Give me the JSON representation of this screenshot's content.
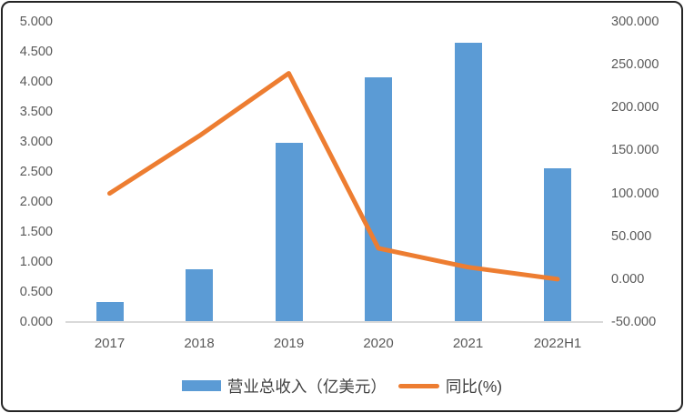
{
  "chart_data": {
    "type": "bar",
    "subtype": "combo-bar-line-dual-axis",
    "categories": [
      "2017",
      "2018",
      "2019",
      "2020",
      "2021",
      "2022H1"
    ],
    "series": [
      {
        "name": "营业总收入（亿美元）",
        "type": "bar",
        "axis": "left",
        "color": "#5B9BD5",
        "values": [
          0.33,
          0.88,
          2.99,
          4.08,
          4.65,
          2.56
        ]
      },
      {
        "name": "同比(%)",
        "type": "line",
        "axis": "right",
        "color": "#ED7D31",
        "values": [
          100,
          167,
          240,
          36,
          14,
          0
        ]
      }
    ],
    "left_axis": {
      "min": 0,
      "max": 5,
      "step": 0.5,
      "tick_labels": [
        "5.000",
        "4.500",
        "4.000",
        "3.500",
        "3.000",
        "2.500",
        "2.000",
        "1.500",
        "1.000",
        "0.500",
        "0.000"
      ]
    },
    "right_axis": {
      "min": -50,
      "max": 300,
      "step": 50,
      "tick_labels": [
        "300.000",
        "250.000",
        "200.000",
        "150.000",
        "100.000",
        "50.000",
        "0.000",
        "-50.000"
      ]
    },
    "title": "",
    "xlabel": "",
    "ylabel": "",
    "grid": "off",
    "legend_position": "bottom"
  },
  "legend": {
    "bar_label": "营业总收入（亿美元）",
    "line_label": "同比(%)"
  },
  "colors": {
    "bar": "#5B9BD5",
    "line": "#ED7D31",
    "axis_line": "#D9D9D9",
    "tick_text": "#595959",
    "frame_border": "#242424"
  }
}
